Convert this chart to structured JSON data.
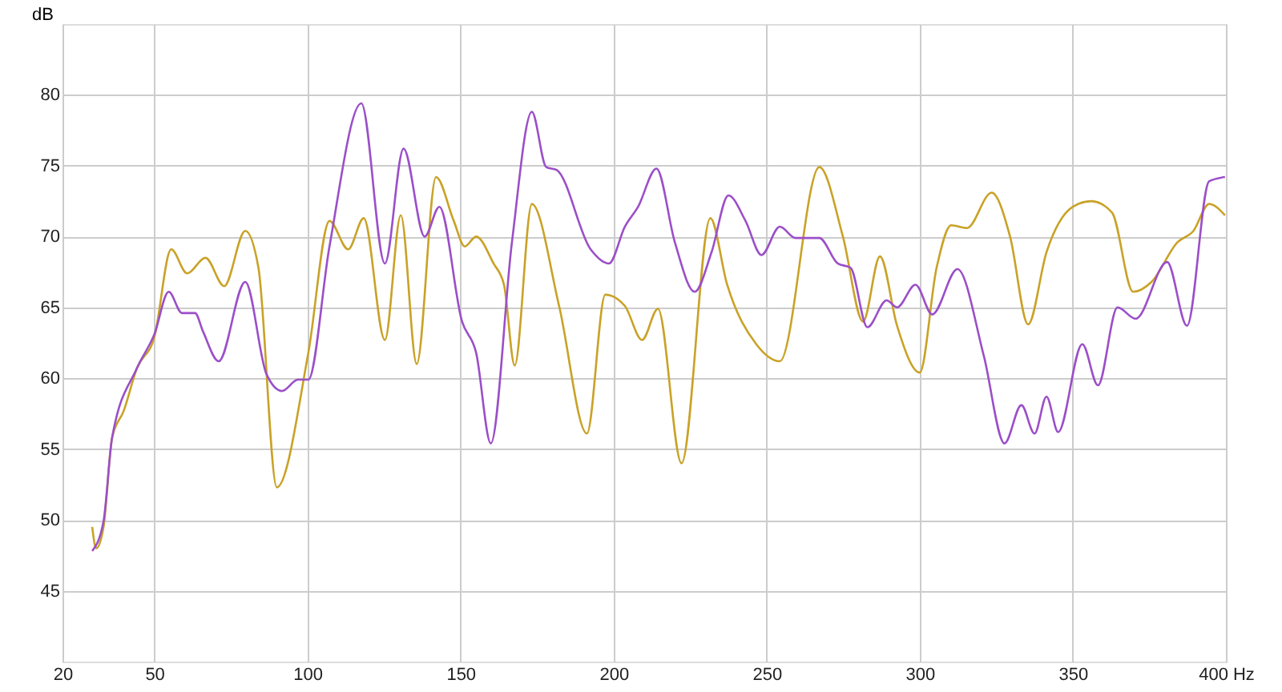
{
  "chart_data": {
    "type": "line",
    "ylabel": "dB",
    "xlim": [
      20,
      400
    ],
    "ylim": [
      40,
      85
    ],
    "xticks": [
      20,
      50,
      100,
      150,
      200,
      250,
      300,
      350,
      {
        "value": 400,
        "label": "400 Hz"
      }
    ],
    "yticks": [
      45,
      50,
      55,
      60,
      65,
      70,
      75,
      80
    ],
    "grid": true,
    "marker": "none",
    "line_style": "solid",
    "series": [
      {
        "color": "#c9a227",
        "x": [
          29.7,
          31,
          33.4,
          36.2,
          40,
          44.3,
          50,
          55.5,
          60.7,
          66.7,
          72.8,
          79.7,
          84,
          90,
          100.3,
          107.2,
          113.3,
          118.4,
          125.3,
          130.5,
          135.7,
          142,
          147.8,
          151.4,
          155.1,
          160.8,
          164.2,
          167.7,
          173.3,
          182.2,
          191.3,
          197.3,
          203.7,
          209.3,
          214.5,
          222.2,
          231.6,
          237.1,
          246.6,
          254.3,
          267.2,
          274.9,
          281.5,
          287,
          292.6,
          300,
          305.5,
          310.3,
          315.4,
          323.5,
          329.5,
          335.4,
          341.4,
          350,
          356,
          362.8,
          369.7,
          375.7,
          384.2,
          389.4,
          394.5,
          399.7
        ],
        "values": [
          49.5,
          48,
          49.5,
          55.8,
          57.7,
          60.7,
          62.9,
          69.1,
          67.4,
          68.5,
          66.5,
          70.4,
          67.8,
          52.3,
          61.8,
          71.1,
          69.1,
          71.3,
          62.7,
          71.5,
          61,
          74.2,
          71.1,
          69.3,
          70,
          68.1,
          66.6,
          60.9,
          72.3,
          65.1,
          56.1,
          65.9,
          65.1,
          62.7,
          64.9,
          54,
          71.3,
          66.6,
          62.4,
          61.2,
          74.9,
          70,
          64,
          68.6,
          63.7,
          60.4,
          67.8,
          70.8,
          70.6,
          73.1,
          70,
          63.8,
          68.9,
          72.1,
          72.5,
          71.7,
          66.1,
          66.8,
          69.6,
          70.4,
          72.3,
          71.5
        ]
      },
      {
        "color": "#9b4fc8",
        "x": [
          29.7,
          33.4,
          36.2,
          44.3,
          50,
          54.7,
          59,
          63.3,
          65.9,
          71,
          79.7,
          86.6,
          91.7,
          96.9,
          100.3,
          107.2,
          117.6,
          125.3,
          131.4,
          138.3,
          143.1,
          150.5,
          155.1,
          159.9,
          166.8,
          173.3,
          178,
          181.4,
          192.5,
          198.5,
          203.7,
          208,
          214,
          220,
          226.5,
          232,
          237.5,
          243.1,
          248.3,
          254.3,
          259.4,
          267.2,
          273.2,
          277.4,
          282.9,
          289.2,
          292.6,
          298.6,
          304.1,
          312.3,
          320.9,
          327.7,
          333.2,
          337.5,
          341.4,
          345.2,
          353.1,
          358.2,
          364.6,
          370.5,
          380.8,
          387.3,
          394.5,
          399.7
        ],
        "values": [
          47.8,
          49.9,
          55.8,
          60.7,
          63.1,
          66.1,
          64.6,
          64.6,
          63.3,
          61.2,
          66.8,
          60.3,
          59.1,
          59.9,
          59.9,
          69.3,
          79.4,
          68.1,
          76.2,
          70,
          72.1,
          64,
          61.8,
          55.4,
          69.6,
          78.8,
          74.9,
          74.7,
          69.1,
          68.1,
          70.7,
          72.1,
          74.8,
          69.6,
          66.1,
          68.9,
          72.9,
          71.1,
          68.7,
          70.7,
          69.9,
          69.9,
          68.1,
          67.8,
          63.6,
          65.5,
          65,
          66.6,
          64.5,
          67.7,
          61.6,
          55.4,
          58.1,
          56.1,
          58.7,
          56.2,
          62.4,
          59.5,
          65,
          64.2,
          68.2,
          63.7,
          73.9,
          74.2
        ]
      }
    ]
  }
}
